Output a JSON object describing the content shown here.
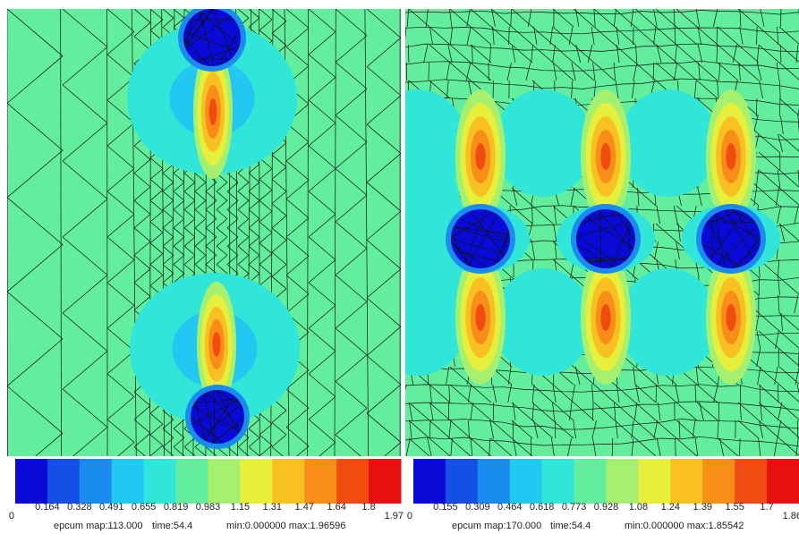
{
  "panels": [
    {
      "colorbar_labels": [
        "0",
        "0.164",
        "0.328",
        "0.491",
        "0.655",
        "0.819",
        "0.983",
        "1.15",
        "1.31",
        "1.47",
        "1.64",
        "1.8",
        "1.97"
      ],
      "caption": {
        "map": "epcum map:113.000",
        "time": "time:54.4",
        "range": "min:0.000000 max:1.96596"
      }
    },
    {
      "colorbar_labels": [
        "0",
        "0.155",
        "0.309",
        "0.464",
        "0.618",
        "0.773",
        "0.928",
        "1.08",
        "1.24",
        "1.39",
        "1.55",
        "1.7",
        "1.86"
      ],
      "caption": {
        "map": "epcum map:170.000",
        "time": "time:54.4",
        "range": "min:0.000000 max:1.85542"
      }
    }
  ]
}
